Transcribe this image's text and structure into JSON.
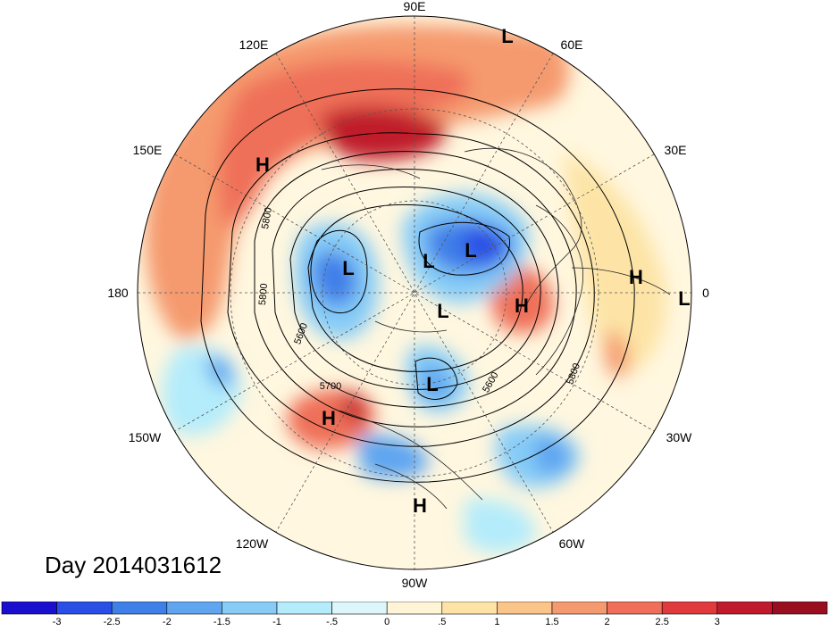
{
  "longitude_labels": [
    {
      "text": "90E",
      "id": "lon-90e"
    },
    {
      "text": "60E",
      "id": "lon-60e"
    },
    {
      "text": "30E",
      "id": "lon-30e"
    },
    {
      "text": "0",
      "id": "lon-0"
    },
    {
      "text": "30W",
      "id": "lon-30w"
    },
    {
      "text": "60W",
      "id": "lon-60w"
    },
    {
      "text": "90W",
      "id": "lon-90w"
    },
    {
      "text": "120W",
      "id": "lon-120w"
    },
    {
      "text": "150W",
      "id": "lon-150w"
    },
    {
      "text": "180",
      "id": "lon-180"
    },
    {
      "text": "150E",
      "id": "lon-150e"
    },
    {
      "text": "120E",
      "id": "lon-120e"
    }
  ],
  "pressure_centers": [
    {
      "type": "L"
    },
    {
      "type": "H"
    },
    {
      "type": "L"
    },
    {
      "type": "L"
    },
    {
      "type": "L"
    },
    {
      "type": "L"
    },
    {
      "type": "H"
    },
    {
      "type": "H"
    },
    {
      "type": "L"
    },
    {
      "type": "L"
    },
    {
      "type": "H"
    },
    {
      "type": "H"
    }
  ],
  "contour_labels": [
    "5800",
    "5800",
    "5600",
    "5700",
    "5600",
    "5800"
  ],
  "day_label": "Day 2014031612",
  "colorbar": {
    "colors": [
      "#1a0fcf",
      "#2a4fe6",
      "#3f7fe8",
      "#5fa5f0",
      "#86ccf7",
      "#b4ecfb",
      "#dcf6fc",
      "#fff5d6",
      "#fde4a6",
      "#fbc489",
      "#f59a6e",
      "#ef6f58",
      "#e0393e",
      "#c01a2c",
      "#9a0f1f"
    ],
    "ticks": [
      "-3",
      "-2.5",
      "-2",
      "-1.5",
      "-1",
      "-.5",
      "0",
      ".5",
      "1",
      "1.5",
      "2",
      "2.5",
      "3"
    ]
  }
}
